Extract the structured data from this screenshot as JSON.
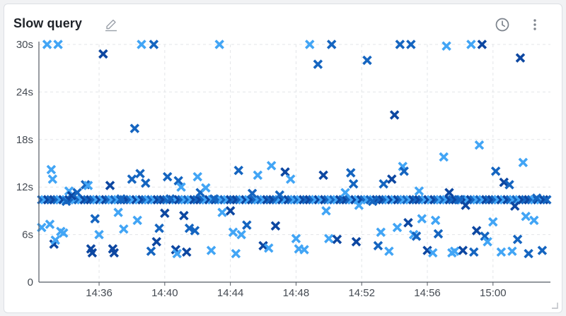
{
  "panel": {
    "title": "Slow query",
    "icons": [
      "edit-icon",
      "history-icon",
      "more-vertical-icon",
      "resize-handle-icon"
    ]
  },
  "chart_data": {
    "type": "scatter",
    "title": "Slow query",
    "xlabel": "",
    "ylabel": "",
    "x_unit": "clock time (HH:MM)",
    "xlim": [
      "14:32:20",
      "15:03:30"
    ],
    "x_ticks": [
      "14:36",
      "14:40",
      "14:44",
      "14:48",
      "14:52",
      "14:56",
      "15:00"
    ],
    "y_unit": "seconds",
    "ylim": [
      0,
      30
    ],
    "y_ticks": [
      "0",
      "6s",
      "12s",
      "18s",
      "24s",
      "30s"
    ],
    "y_tick_values": [
      0,
      6,
      12,
      18,
      24,
      30
    ],
    "grid": true,
    "legend": "none",
    "marker": "cross",
    "colors": [
      "#1565c0",
      "#42a5f5",
      "#0d47a1"
    ],
    "dense_band": {
      "y": 10.4,
      "x_from": "14:32:20",
      "x_to": "15:03:30"
    },
    "points": [
      [
        "14:32:30",
        6.9,
        1
      ],
      [
        "14:32:50",
        30,
        1
      ],
      [
        "14:33:00",
        7.3,
        1
      ],
      [
        "14:33:05",
        14.2,
        1
      ],
      [
        "14:33:10",
        13.0,
        1
      ],
      [
        "14:33:15",
        4.8,
        2
      ],
      [
        "14:33:20",
        5.3,
        1
      ],
      [
        "14:33:30",
        30,
        1
      ],
      [
        "14:33:40",
        6.4,
        1
      ],
      [
        "14:33:50",
        6.2,
        1
      ],
      [
        "14:34:00",
        10.2,
        0
      ],
      [
        "14:34:10",
        11.5,
        1
      ],
      [
        "14:34:20",
        10.9,
        2
      ],
      [
        "14:34:40",
        11.3,
        0
      ],
      [
        "14:35:10",
        12.3,
        0
      ],
      [
        "14:35:20",
        12.2,
        1
      ],
      [
        "14:35:30",
        4.2,
        2
      ],
      [
        "14:35:35",
        3.7,
        2
      ],
      [
        "14:35:45",
        8.0,
        0
      ],
      [
        "14:36:00",
        6.0,
        1
      ],
      [
        "14:36:15",
        28.8,
        2
      ],
      [
        "14:36:40",
        12.2,
        2
      ],
      [
        "14:36:50",
        4.2,
        2
      ],
      [
        "14:36:55",
        3.7,
        2
      ],
      [
        "14:37:10",
        8.8,
        1
      ],
      [
        "14:37:20",
        10.5,
        0
      ],
      [
        "14:37:30",
        6.7,
        1
      ],
      [
        "14:38:00",
        13.0,
        0
      ],
      [
        "14:38:10",
        19.4,
        0
      ],
      [
        "14:38:20",
        7.8,
        1
      ],
      [
        "14:38:30",
        13.7,
        0
      ],
      [
        "14:38:35",
        30,
        1
      ],
      [
        "14:38:50",
        12.5,
        0
      ],
      [
        "14:39:10",
        3.9,
        0
      ],
      [
        "14:39:20",
        30,
        0
      ],
      [
        "14:39:30",
        5.1,
        2
      ],
      [
        "14:39:40",
        6.8,
        0
      ],
      [
        "14:40:00",
        8.7,
        2
      ],
      [
        "14:40:10",
        13.3,
        0
      ],
      [
        "14:40:20",
        10.5,
        0
      ],
      [
        "14:40:40",
        4.1,
        2
      ],
      [
        "14:40:45",
        3.6,
        1
      ],
      [
        "14:40:50",
        12.8,
        0
      ],
      [
        "14:41:00",
        12.0,
        1
      ],
      [
        "14:41:10",
        8.4,
        2
      ],
      [
        "14:41:20",
        3.8,
        2
      ],
      [
        "14:41:30",
        6.8,
        0
      ],
      [
        "14:41:50",
        6.5,
        0
      ],
      [
        "14:42:00",
        13.3,
        1
      ],
      [
        "14:42:10",
        11.3,
        0
      ],
      [
        "14:42:30",
        11.9,
        1
      ],
      [
        "14:42:50",
        4.0,
        1
      ],
      [
        "14:43:00",
        10.5,
        0
      ],
      [
        "14:43:20",
        30,
        1
      ],
      [
        "14:43:30",
        8.8,
        1
      ],
      [
        "14:44:00",
        9.0,
        2
      ],
      [
        "14:44:10",
        6.3,
        1
      ],
      [
        "14:44:20",
        3.6,
        1
      ],
      [
        "14:44:30",
        14.1,
        0
      ],
      [
        "14:44:40",
        6.0,
        1
      ],
      [
        "14:45:00",
        7.2,
        0
      ],
      [
        "14:45:20",
        11.2,
        0
      ],
      [
        "14:45:40",
        13.5,
        1
      ],
      [
        "14:46:00",
        4.6,
        2
      ],
      [
        "14:46:20",
        4.3,
        1
      ],
      [
        "14:46:30",
        14.7,
        1
      ],
      [
        "14:46:45",
        7.1,
        2
      ],
      [
        "14:47:00",
        11.0,
        0
      ],
      [
        "14:47:20",
        13.9,
        2
      ],
      [
        "14:47:40",
        13.0,
        1
      ],
      [
        "14:48:00",
        5.5,
        1
      ],
      [
        "14:48:10",
        4.2,
        1
      ],
      [
        "14:48:30",
        4.1,
        1
      ],
      [
        "14:48:50",
        30,
        1
      ],
      [
        "14:49:20",
        27.5,
        0
      ],
      [
        "14:49:40",
        13.5,
        2
      ],
      [
        "14:49:50",
        9.0,
        1
      ],
      [
        "14:50:00",
        5.5,
        1
      ],
      [
        "14:50:10",
        30,
        0
      ],
      [
        "14:50:30",
        5.4,
        2
      ],
      [
        "14:51:00",
        11.3,
        1
      ],
      [
        "14:51:20",
        13.8,
        0
      ],
      [
        "14:51:30",
        12.4,
        0
      ],
      [
        "14:51:40",
        5.1,
        2
      ],
      [
        "14:51:50",
        9.7,
        1
      ],
      [
        "14:52:20",
        28.0,
        0
      ],
      [
        "14:52:40",
        10.2,
        0
      ],
      [
        "14:53:00",
        4.6,
        0
      ],
      [
        "14:53:10",
        6.3,
        1
      ],
      [
        "14:53:20",
        12.4,
        0
      ],
      [
        "14:53:40",
        3.9,
        1
      ],
      [
        "14:53:50",
        13.0,
        2
      ],
      [
        "14:54:00",
        21.1,
        2
      ],
      [
        "14:54:10",
        6.9,
        1
      ],
      [
        "14:54:20",
        30,
        0
      ],
      [
        "14:54:30",
        14.6,
        1
      ],
      [
        "14:54:35",
        14.0,
        0
      ],
      [
        "14:54:50",
        7.5,
        2
      ],
      [
        "14:55:00",
        30,
        0
      ],
      [
        "14:55:10",
        6.0,
        1
      ],
      [
        "14:55:20",
        5.8,
        0
      ],
      [
        "14:55:30",
        11.5,
        1
      ],
      [
        "14:55:40",
        8.0,
        1
      ],
      [
        "14:56:00",
        4.0,
        2
      ],
      [
        "14:56:20",
        3.7,
        1
      ],
      [
        "14:56:30",
        7.8,
        1
      ],
      [
        "14:56:40",
        6.1,
        0
      ],
      [
        "14:57:00",
        15.8,
        1
      ],
      [
        "14:57:10",
        29.8,
        1
      ],
      [
        "14:57:20",
        11.3,
        2
      ],
      [
        "14:57:30",
        3.7,
        1
      ],
      [
        "14:57:40",
        3.9,
        1
      ],
      [
        "14:58:00",
        10.4,
        0
      ],
      [
        "14:58:10",
        4.0,
        2
      ],
      [
        "14:58:20",
        9.7,
        2
      ],
      [
        "14:58:40",
        30,
        1
      ],
      [
        "14:58:50",
        3.8,
        0
      ],
      [
        "14:59:00",
        6.5,
        2
      ],
      [
        "14:59:10",
        17.3,
        1
      ],
      [
        "14:59:20",
        30,
        2
      ],
      [
        "14:59:30",
        5.8,
        0
      ],
      [
        "14:59:40",
        5.1,
        1
      ],
      [
        "15:00:00",
        7.6,
        1
      ],
      [
        "15:00:10",
        14.0,
        0
      ],
      [
        "15:00:30",
        3.8,
        1
      ],
      [
        "15:00:40",
        12.6,
        2
      ],
      [
        "15:01:00",
        12.3,
        0
      ],
      [
        "15:01:10",
        3.9,
        1
      ],
      [
        "15:01:20",
        9.6,
        2
      ],
      [
        "15:01:30",
        5.4,
        0
      ],
      [
        "15:01:40",
        28.3,
        2
      ],
      [
        "15:01:50",
        15.1,
        1
      ],
      [
        "15:02:00",
        8.3,
        1
      ],
      [
        "15:02:10",
        3.6,
        0
      ],
      [
        "15:02:30",
        7.8,
        1
      ],
      [
        "15:02:40",
        10.6,
        0
      ],
      [
        "15:03:00",
        4.0,
        0
      ]
    ]
  }
}
